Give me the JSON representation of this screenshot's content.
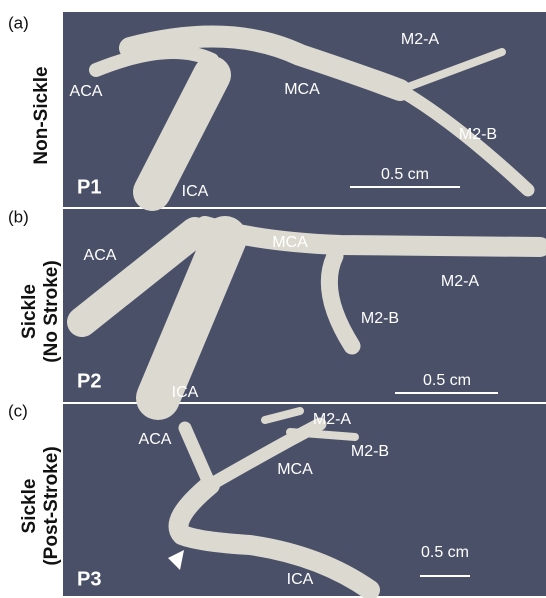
{
  "panels": [
    {
      "letter": "(a)",
      "row_label": [
        "Non-Sickle"
      ],
      "patient": "P1",
      "scale": "0.5 cm",
      "vessels": [
        "ACA",
        "MCA",
        "M2-A",
        "M2-B",
        "ICA"
      ]
    },
    {
      "letter": "(b)",
      "row_label": [
        "Sickle",
        "(No Stroke)"
      ],
      "patient": "P2",
      "scale": "0.5 cm",
      "vessels": [
        "ACA",
        "MCA",
        "M2-A",
        "M2-B",
        "ICA"
      ]
    },
    {
      "letter": "(c)",
      "row_label": [
        "Sickle",
        "(Post-Stroke)"
      ],
      "patient": "P3",
      "scale": "0.5 cm",
      "vessels": [
        "ACA",
        "MCA",
        "M2-A",
        "M2-B",
        "ICA"
      ]
    }
  ]
}
